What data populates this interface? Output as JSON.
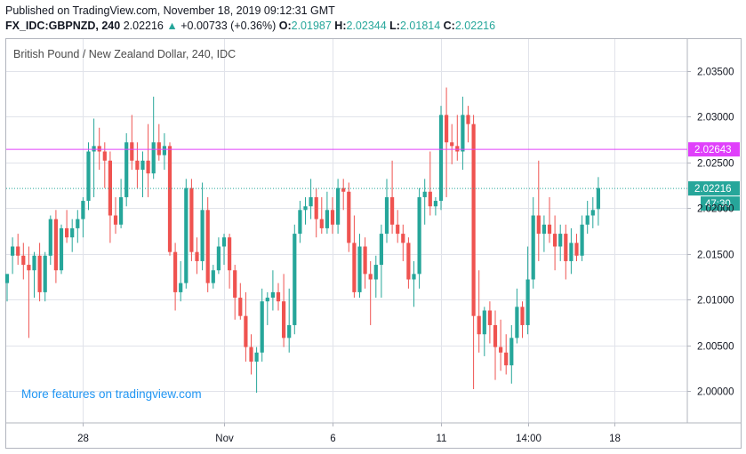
{
  "header": {
    "published": "Published on TradingView.com, November 18, 2019 09:12:31 GMT",
    "symbol": "FX_IDC:GBPNZD, 240",
    "last": "2.02216",
    "change_arrow": "▲",
    "change": "+0.00733 (+0.36%)",
    "o_label": "O:",
    "o_value": "2.01987",
    "h_label": "H:",
    "h_value": "2.02344",
    "l_label": "L:",
    "l_value": "2.01814",
    "c_label": "C:",
    "c_value": "2.02216"
  },
  "watermark": "More features on tradingview.com",
  "colors": {
    "up": "#26a69a",
    "down": "#ef5350",
    "hline": "#e040fb",
    "grid": "#e1e3ea",
    "price_line": "#26a69a"
  },
  "chart_data": {
    "type": "candlestick",
    "title": "British Pound / New Zealand Dollar, 240, IDC",
    "y_ticks": [
      "2.03500",
      "2.03000",
      "2.02500",
      "2.02000",
      "2.01500",
      "2.01000",
      "2.00500",
      "2.00000"
    ],
    "y_tick_values": [
      2.035,
      2.03,
      2.025,
      2.02,
      2.015,
      2.01,
      2.005,
      2.0
    ],
    "ylim": [
      1.9965,
      2.0385
    ],
    "x_ticks": [
      "28",
      "Nov",
      "6",
      "11",
      "14:00",
      "18"
    ],
    "x_tick_index": [
      14,
      40,
      60,
      80,
      96,
      112
    ],
    "horizontal_line": {
      "value": 2.02643,
      "label": "2.02643"
    },
    "last_price": {
      "value": 2.02216,
      "label": "2.02216",
      "countdown": "47:30"
    },
    "candles": [
      {
        "o": 2.0118,
        "h": 2.0128,
        "l": 2.0098,
        "c": 2.0128
      },
      {
        "o": 2.0148,
        "h": 2.0168,
        "l": 2.0128,
        "c": 2.0158
      },
      {
        "o": 2.0158,
        "h": 2.0172,
        "l": 2.0138,
        "c": 2.0148
      },
      {
        "o": 2.0148,
        "h": 2.0162,
        "l": 2.0122,
        "c": 2.0138
      },
      {
        "o": 2.0138,
        "h": 2.0158,
        "l": 2.0058,
        "c": 2.0132
      },
      {
        "o": 2.0132,
        "h": 2.0152,
        "l": 2.0102,
        "c": 2.0148
      },
      {
        "o": 2.0148,
        "h": 2.0162,
        "l": 2.0098,
        "c": 2.0108
      },
      {
        "o": 2.0108,
        "h": 2.0152,
        "l": 2.0098,
        "c": 2.0148
      },
      {
        "o": 2.0148,
        "h": 2.0192,
        "l": 2.0138,
        "c": 2.0188
      },
      {
        "o": 2.0188,
        "h": 2.0198,
        "l": 2.0118,
        "c": 2.0132
      },
      {
        "o": 2.0132,
        "h": 2.0182,
        "l": 2.0128,
        "c": 2.0178
      },
      {
        "o": 2.0178,
        "h": 2.0198,
        "l": 2.0162,
        "c": 2.0168
      },
      {
        "o": 2.0168,
        "h": 2.0188,
        "l": 2.0152,
        "c": 2.0178
      },
      {
        "o": 2.0178,
        "h": 2.0198,
        "l": 2.0162,
        "c": 2.0188
      },
      {
        "o": 2.0188,
        "h": 2.0212,
        "l": 2.0168,
        "c": 2.0208
      },
      {
        "o": 2.0208,
        "h": 2.0272,
        "l": 2.0198,
        "c": 2.0262
      },
      {
        "o": 2.0262,
        "h": 2.0298,
        "l": 2.0212,
        "c": 2.0268
      },
      {
        "o": 2.0268,
        "h": 2.0288,
        "l": 2.0242,
        "c": 2.0262
      },
      {
        "o": 2.0262,
        "h": 2.0272,
        "l": 2.0222,
        "c": 2.0252
      },
      {
        "o": 2.0252,
        "h": 2.0262,
        "l": 2.0162,
        "c": 2.0192
      },
      {
        "o": 2.0192,
        "h": 2.0212,
        "l": 2.0172,
        "c": 2.0182
      },
      {
        "o": 2.0182,
        "h": 2.0232,
        "l": 2.0178,
        "c": 2.0212
      },
      {
        "o": 2.0212,
        "h": 2.0282,
        "l": 2.0202,
        "c": 2.0272
      },
      {
        "o": 2.0272,
        "h": 2.0302,
        "l": 2.0242,
        "c": 2.0252
      },
      {
        "o": 2.0252,
        "h": 2.0272,
        "l": 2.0222,
        "c": 2.0242
      },
      {
        "o": 2.0242,
        "h": 2.0262,
        "l": 2.0212,
        "c": 2.0252
      },
      {
        "o": 2.0252,
        "h": 2.0292,
        "l": 2.0212,
        "c": 2.0238
      },
      {
        "o": 2.0238,
        "h": 2.0322,
        "l": 2.0232,
        "c": 2.0272
      },
      {
        "o": 2.0272,
        "h": 2.0292,
        "l": 2.0252,
        "c": 2.0258
      },
      {
        "o": 2.0258,
        "h": 2.0282,
        "l": 2.0242,
        "c": 2.0268
      },
      {
        "o": 2.0268,
        "h": 2.0272,
        "l": 2.0148,
        "c": 2.0152
      },
      {
        "o": 2.0152,
        "h": 2.0162,
        "l": 2.0088,
        "c": 2.0108
      },
      {
        "o": 2.0108,
        "h": 2.0142,
        "l": 2.0098,
        "c": 2.0118
      },
      {
        "o": 2.0118,
        "h": 2.0232,
        "l": 2.0112,
        "c": 2.0222
      },
      {
        "o": 2.0222,
        "h": 2.0232,
        "l": 2.0142,
        "c": 2.0152
      },
      {
        "o": 2.0152,
        "h": 2.0168,
        "l": 2.0128,
        "c": 2.0142
      },
      {
        "o": 2.0142,
        "h": 2.0228,
        "l": 2.0132,
        "c": 2.0198
      },
      {
        "o": 2.0198,
        "h": 2.0212,
        "l": 2.0108,
        "c": 2.0118
      },
      {
        "o": 2.0118,
        "h": 2.0138,
        "l": 2.0112,
        "c": 2.0132
      },
      {
        "o": 2.0132,
        "h": 2.0168,
        "l": 2.0128,
        "c": 2.0158
      },
      {
        "o": 2.0158,
        "h": 2.0172,
        "l": 2.0138,
        "c": 2.0168
      },
      {
        "o": 2.0168,
        "h": 2.0172,
        "l": 2.0112,
        "c": 2.0132
      },
      {
        "o": 2.0132,
        "h": 2.0138,
        "l": 2.0078,
        "c": 2.0102
      },
      {
        "o": 2.0102,
        "h": 2.0118,
        "l": 2.0078,
        "c": 2.0082
      },
      {
        "o": 2.0082,
        "h": 2.0108,
        "l": 2.0032,
        "c": 2.0048
      },
      {
        "o": 2.0048,
        "h": 2.0062,
        "l": 2.0018,
        "c": 2.0032
      },
      {
        "o": 2.0032,
        "h": 2.0048,
        "l": 1.9998,
        "c": 2.0042
      },
      {
        "o": 2.0042,
        "h": 2.0112,
        "l": 2.0032,
        "c": 2.0098
      },
      {
        "o": 2.0098,
        "h": 2.0108,
        "l": 2.0072,
        "c": 2.0102
      },
      {
        "o": 2.0102,
        "h": 2.0132,
        "l": 2.0088,
        "c": 2.0108
      },
      {
        "o": 2.0108,
        "h": 2.0118,
        "l": 2.0088,
        "c": 2.0098
      },
      {
        "o": 2.0098,
        "h": 2.0128,
        "l": 2.0048,
        "c": 2.0058
      },
      {
        "o": 2.0058,
        "h": 2.0112,
        "l": 2.0042,
        "c": 2.0072
      },
      {
        "o": 2.0072,
        "h": 2.0182,
        "l": 2.0062,
        "c": 2.0172
      },
      {
        "o": 2.0172,
        "h": 2.0208,
        "l": 2.0162,
        "c": 2.0198
      },
      {
        "o": 2.0198,
        "h": 2.0212,
        "l": 2.0182,
        "c": 2.0202
      },
      {
        "o": 2.0202,
        "h": 2.0232,
        "l": 2.0188,
        "c": 2.0212
      },
      {
        "o": 2.0212,
        "h": 2.0222,
        "l": 2.0168,
        "c": 2.0188
      },
      {
        "o": 2.0188,
        "h": 2.0212,
        "l": 2.0172,
        "c": 2.0178
      },
      {
        "o": 2.0178,
        "h": 2.0218,
        "l": 2.0172,
        "c": 2.0198
      },
      {
        "o": 2.0198,
        "h": 2.0212,
        "l": 2.0172,
        "c": 2.0182
      },
      {
        "o": 2.0182,
        "h": 2.0232,
        "l": 2.0172,
        "c": 2.0222
      },
      {
        "o": 2.0222,
        "h": 2.0232,
        "l": 2.0198,
        "c": 2.0218
      },
      {
        "o": 2.0218,
        "h": 2.0228,
        "l": 2.0152,
        "c": 2.0162
      },
      {
        "o": 2.0162,
        "h": 2.0192,
        "l": 2.0102,
        "c": 2.0108
      },
      {
        "o": 2.0108,
        "h": 2.0172,
        "l": 2.0102,
        "c": 2.0158
      },
      {
        "o": 2.0158,
        "h": 2.0168,
        "l": 2.0112,
        "c": 2.0128
      },
      {
        "o": 2.0128,
        "h": 2.0142,
        "l": 2.0072,
        "c": 2.0122
      },
      {
        "o": 2.0122,
        "h": 2.0148,
        "l": 2.0102,
        "c": 2.0138
      },
      {
        "o": 2.0138,
        "h": 2.0182,
        "l": 2.0102,
        "c": 2.0172
      },
      {
        "o": 2.0172,
        "h": 2.0232,
        "l": 2.0162,
        "c": 2.0212
      },
      {
        "o": 2.0212,
        "h": 2.0252,
        "l": 2.0172,
        "c": 2.0182
      },
      {
        "o": 2.0182,
        "h": 2.0198,
        "l": 2.0162,
        "c": 2.0172
      },
      {
        "o": 2.0172,
        "h": 2.0182,
        "l": 2.0142,
        "c": 2.0162
      },
      {
        "o": 2.0162,
        "h": 2.0168,
        "l": 2.0112,
        "c": 2.0122
      },
      {
        "o": 2.0122,
        "h": 2.0142,
        "l": 2.0092,
        "c": 2.0128
      },
      {
        "o": 2.0128,
        "h": 2.0222,
        "l": 2.0112,
        "c": 2.0212
      },
      {
        "o": 2.0212,
        "h": 2.0232,
        "l": 2.0182,
        "c": 2.0218
      },
      {
        "o": 2.0218,
        "h": 2.0262,
        "l": 2.0192,
        "c": 2.0202
      },
      {
        "o": 2.0202,
        "h": 2.0212,
        "l": 2.0192,
        "c": 2.0208
      },
      {
        "o": 2.0208,
        "h": 2.0312,
        "l": 2.0198,
        "c": 2.0302
      },
      {
        "o": 2.0302,
        "h": 2.0332,
        "l": 2.0212,
        "c": 2.0272
      },
      {
        "o": 2.0272,
        "h": 2.0292,
        "l": 2.0248,
        "c": 2.0268
      },
      {
        "o": 2.0268,
        "h": 2.0302,
        "l": 2.0252,
        "c": 2.0262
      },
      {
        "o": 2.0262,
        "h": 2.0322,
        "l": 2.0242,
        "c": 2.0302
      },
      {
        "o": 2.0302,
        "h": 2.0312,
        "l": 2.0272,
        "c": 2.0292
      },
      {
        "o": 2.0292,
        "h": 2.0302,
        "l": 2.0002,
        "c": 2.0082
      },
      {
        "o": 2.0082,
        "h": 2.0132,
        "l": 2.0042,
        "c": 2.0062
      },
      {
        "o": 2.0062,
        "h": 2.0092,
        "l": 2.0038,
        "c": 2.0088
      },
      {
        "o": 2.0088,
        "h": 2.0098,
        "l": 2.0052,
        "c": 2.0072
      },
      {
        "o": 2.0072,
        "h": 2.0088,
        "l": 2.0012,
        "c": 2.0048
      },
      {
        "o": 2.0048,
        "h": 2.0078,
        "l": 2.0022,
        "c": 2.0042
      },
      {
        "o": 2.0042,
        "h": 2.0062,
        "l": 2.0018,
        "c": 2.0028
      },
      {
        "o": 2.0028,
        "h": 2.0072,
        "l": 2.0008,
        "c": 2.0058
      },
      {
        "o": 2.0058,
        "h": 2.0112,
        "l": 2.0052,
        "c": 2.0092
      },
      {
        "o": 2.0092,
        "h": 2.0098,
        "l": 2.0058,
        "c": 2.0072
      },
      {
        "o": 2.0072,
        "h": 2.0158,
        "l": 2.0062,
        "c": 2.0122
      },
      {
        "o": 2.0122,
        "h": 2.0212,
        "l": 2.0112,
        "c": 2.0192
      },
      {
        "o": 2.0192,
        "h": 2.0252,
        "l": 2.0142,
        "c": 2.0172
      },
      {
        "o": 2.0172,
        "h": 2.0192,
        "l": 2.0152,
        "c": 2.0182
      },
      {
        "o": 2.0182,
        "h": 2.0212,
        "l": 2.0162,
        "c": 2.0172
      },
      {
        "o": 2.0172,
        "h": 2.0192,
        "l": 2.0132,
        "c": 2.0158
      },
      {
        "o": 2.0158,
        "h": 2.0182,
        "l": 2.0142,
        "c": 2.0172
      },
      {
        "o": 2.0172,
        "h": 2.0182,
        "l": 2.0122,
        "c": 2.0142
      },
      {
        "o": 2.0142,
        "h": 2.0178,
        "l": 2.0128,
        "c": 2.0162
      },
      {
        "o": 2.0162,
        "h": 2.0172,
        "l": 2.0142,
        "c": 2.0148
      },
      {
        "o": 2.0148,
        "h": 2.0192,
        "l": 2.0142,
        "c": 2.0182
      },
      {
        "o": 2.0182,
        "h": 2.0208,
        "l": 2.0172,
        "c": 2.0192
      },
      {
        "o": 2.0192,
        "h": 2.0212,
        "l": 2.0178,
        "c": 2.0198
      },
      {
        "o": 2.0199,
        "h": 2.0234,
        "l": 2.0181,
        "c": 2.0222
      }
    ]
  }
}
